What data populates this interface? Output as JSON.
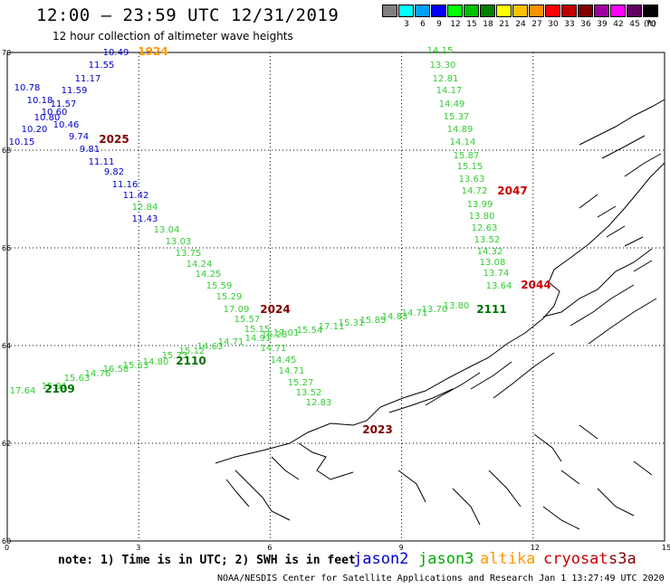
{
  "header": {
    "title": "12:00 — 23:59 UTC 12/31/2019",
    "subtitle": "12 hour collection of altimeter wave heights"
  },
  "legend": {
    "unit": "(ft)",
    "bins": [
      {
        "label": "",
        "color": "#808080"
      },
      {
        "label": "3",
        "color": "#00ffff"
      },
      {
        "label": "6",
        "color": "#00a0ff"
      },
      {
        "label": "9",
        "color": "#0000ff"
      },
      {
        "label": "12",
        "color": "#00ff00"
      },
      {
        "label": "15",
        "color": "#00c000"
      },
      {
        "label": "18",
        "color": "#008000"
      },
      {
        "label": "21",
        "color": "#ffff00"
      },
      {
        "label": "24",
        "color": "#ffc000"
      },
      {
        "label": "27",
        "color": "#ff9000"
      },
      {
        "label": "30",
        "color": "#ff0000"
      },
      {
        "label": "33",
        "color": "#c00000"
      },
      {
        "label": "36",
        "color": "#800000"
      },
      {
        "label": "39",
        "color": "#a000a0"
      },
      {
        "label": "42",
        "color": "#ff00ff"
      },
      {
        "label": "45",
        "color": "#600060"
      },
      {
        "label": "70",
        "color": "#000000"
      }
    ]
  },
  "axes": {
    "lat_ticks": [
      "70",
      "68",
      "66",
      "64",
      "62",
      "60"
    ],
    "lon_ticks": [
      "0",
      "3",
      "6",
      "9",
      "12",
      "15"
    ]
  },
  "tracks": [
    {
      "id": "jason2-a",
      "color": "#0000cc",
      "time_label": "2025",
      "values": [
        "10.49",
        "11.55",
        "11.17",
        "10.78",
        "10.18",
        "11.59",
        "11.57",
        "10.60",
        "10.80",
        "10.20",
        "10.46",
        "10.15",
        "9.74",
        "9.81",
        "11.11",
        "9.82",
        "11.16",
        "11.42",
        "11.43"
      ]
    },
    {
      "id": "jason3-a",
      "color": "#33cc33",
      "time_label": "2024",
      "values": [
        "12.84",
        "13.04",
        "13.03",
        "13.75",
        "14.24",
        "14.25",
        "15.59",
        "15.29",
        "17.09",
        "15.57",
        "15.15",
        "14.71",
        "14.45",
        "14.71",
        "15.27",
        "13.52",
        "12.83"
      ]
    },
    {
      "id": "jason3-b",
      "color": "#33cc33",
      "time_label": "2047",
      "values": [
        "14.15",
        "13.30",
        "12.81",
        "14.17",
        "14.49",
        "15.37",
        "14.89",
        "14.14",
        "15.87",
        "15.15",
        "13.63",
        "14.72",
        "13.99",
        "13.80",
        "12.63",
        "13.52",
        "14.32",
        "13.08",
        "13.74",
        "13.64"
      ]
    },
    {
      "id": "jason3-c",
      "color": "#33cc33",
      "time_label": "2110",
      "values": [
        "17.64",
        "15.91",
        "15.63",
        "14.76",
        "16.58",
        "15.63",
        "14.80",
        "15.73",
        "15.12",
        "14.63",
        "14.71",
        "14.91",
        "16.28",
        "17.01",
        "15.54",
        "17.11",
        "15.31",
        "15.85",
        "14.83",
        "14.71",
        "13.70",
        "13.80"
      ]
    },
    {
      "id": "jason3-d",
      "color": "#33cc33",
      "time_label": "2109",
      "values": []
    },
    {
      "id": "jason3-e",
      "color": "#33cc33",
      "time_label": "2111",
      "values": []
    },
    {
      "id": "altika-a",
      "color": "#ff9900",
      "time_label": "1924",
      "values": []
    },
    {
      "id": "cryosat-a",
      "color": "#cc0000",
      "time_label": "2044",
      "values": []
    },
    {
      "id": "s3a-a",
      "color": "#800000",
      "time_label": "2023",
      "values": []
    }
  ],
  "footer": {
    "note": "note: 1) Time is in UTC; 2) SWH is in feet",
    "satellites": [
      {
        "name": "jason2",
        "color": "#0000cc"
      },
      {
        "name": "jason3",
        "color": "#00aa00"
      },
      {
        "name": "altika",
        "color": "#ff9900"
      },
      {
        "name": "cryosat",
        "color": "#cc0000"
      },
      {
        "name": "s3a",
        "color": "#800000"
      }
    ],
    "credit": "NOAA/NESDIS Center for Satellite Applications and Research   Jan  1 13:27:49 UTC 2020"
  }
}
